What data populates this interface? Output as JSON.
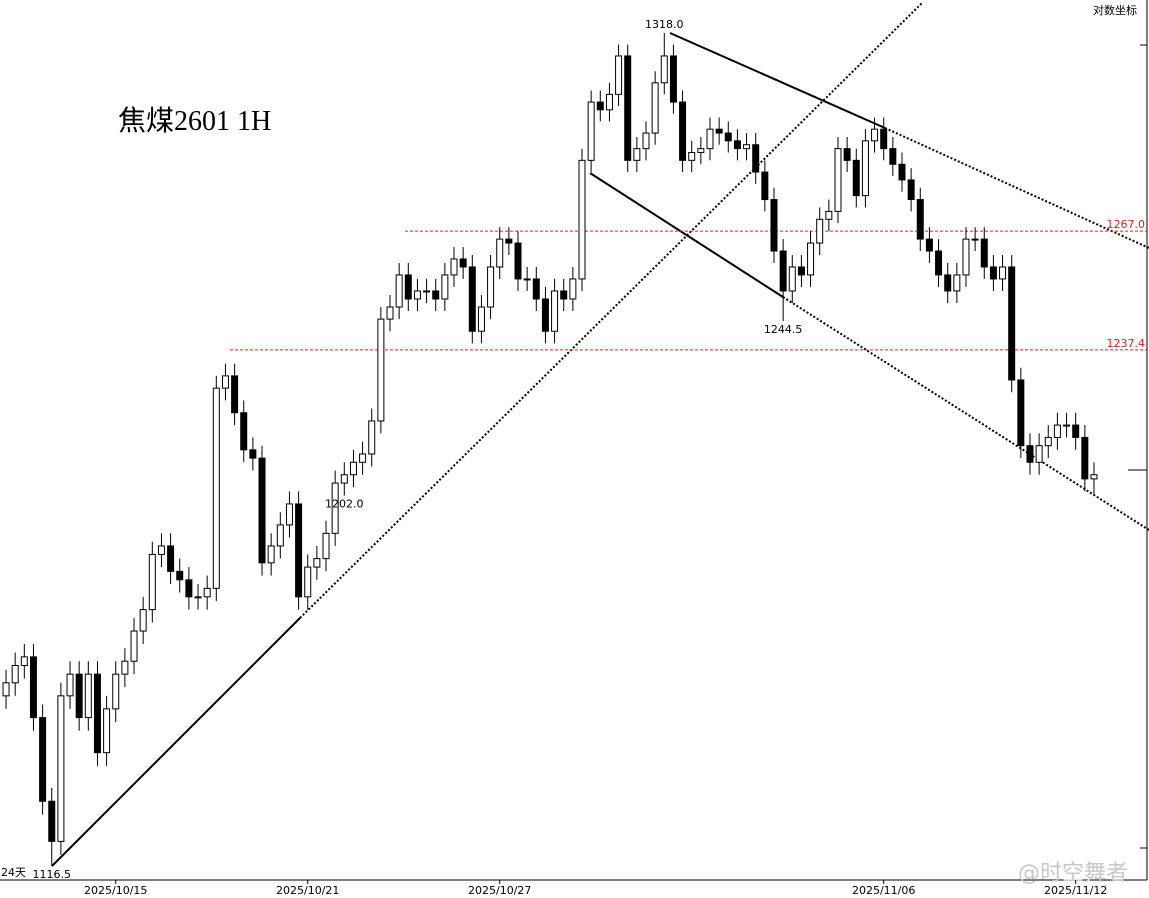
{
  "chart_data": {
    "type": "candlestick",
    "title": "焦煤2601  1H",
    "scale_note": "对数坐标",
    "corner_note": "24天",
    "watermark": "@时空舞者",
    "log_scale": true,
    "ylim": [
      1113.4,
      1326.7
    ],
    "xlim": [
      -0.66,
      124.8
    ],
    "up_color": "#ffffff",
    "down_color": "#000000",
    "level_color": "#e02020",
    "xticks": [
      {
        "value": 12,
        "label": "2025/10/15"
      },
      {
        "value": 33,
        "label": "2025/10/21"
      },
      {
        "value": 54,
        "label": "2025/10/27"
      },
      {
        "value": 96,
        "label": "2025/11/06"
      },
      {
        "value": 117,
        "label": "2025/11/12"
      }
    ],
    "levels": [
      {
        "value": 1267,
        "label": "1267.0"
      },
      {
        "value": 1237.4,
        "label": "1237.4"
      }
    ],
    "annotations": [
      {
        "value": 1318,
        "label": "1318.0"
      },
      {
        "value": 1116.5,
        "label": "1116.5"
      },
      {
        "value": 1244.5,
        "label": "1244.5"
      },
      {
        "value": 1202,
        "label": "1202.0"
      }
    ],
    "open": [
      1155,
      1158,
      1162,
      1164,
      1150,
      1131,
      1122,
      1155,
      1160,
      1150,
      1160,
      1142,
      1152,
      1160,
      1163,
      1170,
      1175,
      1188,
      1190,
      1184,
      1182,
      1178,
      1178,
      1180,
      1228,
      1231,
      1222,
      1213,
      1211,
      1186,
      1190,
      1195,
      1200,
      1178,
      1185,
      1187,
      1193,
      1205,
      1207,
      1210,
      1212,
      1220,
      1245,
      1248,
      1256,
      1250,
      1252,
      1252,
      1250,
      1256,
      1260,
      1258,
      1242,
      1248,
      1258,
      1265,
      1264,
      1255,
      1255,
      1250,
      1242,
      1252,
      1250,
      1255,
      1285,
      1300,
      1298,
      1302,
      1312,
      1285,
      1288,
      1292,
      1305,
      1312,
      1300,
      1285,
      1287,
      1288,
      1293,
      1292,
      1290,
      1288,
      1289,
      1282,
      1275,
      1262,
      1252,
      1258,
      1256,
      1264,
      1270,
      1272,
      1288,
      1285,
      1276,
      1290,
      1293,
      1288,
      1284,
      1280,
      1275,
      1265,
      1262,
      1256,
      1252,
      1256,
      1265,
      1265,
      1258,
      1255,
      1258,
      1230,
      1214,
      1210,
      1214,
      1216,
      1219,
      1219,
      1216,
      1206
    ],
    "high": [
      1161,
      1165,
      1167,
      1167,
      1153,
      1134,
      1158,
      1163,
      1163,
      1163,
      1163,
      1155,
      1163,
      1166,
      1173,
      1178,
      1191,
      1193,
      1193,
      1187,
      1185,
      1181,
      1183,
      1231,
      1234,
      1234,
      1225,
      1216,
      1214,
      1193,
      1198,
      1203,
      1203,
      1188,
      1190,
      1196,
      1208,
      1210,
      1213,
      1215,
      1223,
      1248,
      1251,
      1259,
      1259,
      1255,
      1255,
      1255,
      1259,
      1263,
      1263,
      1261,
      1251,
      1261,
      1268,
      1268,
      1267,
      1258,
      1258,
      1253,
      1255,
      1255,
      1258,
      1288,
      1303,
      1303,
      1305,
      1315,
      1315,
      1291,
      1295,
      1308,
      1318,
      1315,
      1303,
      1290,
      1291,
      1296,
      1296,
      1295,
      1293,
      1292,
      1292,
      1285,
      1278,
      1265,
      1261,
      1261,
      1267,
      1273,
      1275,
      1291,
      1291,
      1288,
      1293,
      1296,
      1296,
      1291,
      1287,
      1283,
      1278,
      1268,
      1265,
      1259,
      1259,
      1268,
      1268,
      1268,
      1261,
      1261,
      1261,
      1233,
      1217,
      1217,
      1219,
      1222,
      1222,
      1222,
      1219,
      1210
    ],
    "low": [
      1152,
      1155,
      1159,
      1147,
      1128,
      1116.5,
      1119,
      1152,
      1147,
      1147,
      1139,
      1139,
      1149,
      1157,
      1160,
      1167,
      1172,
      1185,
      1181,
      1179,
      1175,
      1175,
      1175,
      1177,
      1225,
      1219,
      1210,
      1208,
      1183,
      1183,
      1187,
      1192,
      1175,
      1175,
      1182,
      1184,
      1190,
      1202,
      1204,
      1207,
      1209,
      1217,
      1242,
      1245,
      1247,
      1247,
      1249,
      1247,
      1247,
      1253,
      1255,
      1239,
      1239,
      1245,
      1255,
      1261,
      1252,
      1252,
      1247,
      1239,
      1239,
      1247,
      1247,
      1252,
      1282,
      1295,
      1295,
      1299,
      1282,
      1282,
      1285,
      1289,
      1302,
      1297,
      1282,
      1282,
      1284,
      1285,
      1289,
      1287,
      1285,
      1285,
      1279,
      1272,
      1259,
      1244.5,
      1249,
      1253,
      1253,
      1261,
      1267,
      1269,
      1282,
      1273,
      1273,
      1287,
      1285,
      1281,
      1277,
      1272,
      1262,
      1259,
      1253,
      1249,
      1249,
      1253,
      1262,
      1255,
      1252,
      1252,
      1227,
      1211,
      1207,
      1207,
      1211,
      1213,
      1216,
      1213,
      1203,
      1202
    ],
    "close": [
      1158,
      1162,
      1164,
      1150,
      1131,
      1122,
      1155,
      1160,
      1150,
      1160,
      1142,
      1152,
      1160,
      1163,
      1170,
      1175,
      1188,
      1190,
      1184,
      1182,
      1178,
      1178,
      1180,
      1228,
      1231,
      1222,
      1213,
      1211,
      1186,
      1190,
      1195,
      1200,
      1178,
      1185,
      1187,
      1193,
      1205,
      1207,
      1210,
      1212,
      1220,
      1245,
      1248,
      1256,
      1250,
      1252,
      1252,
      1250,
      1256,
      1260,
      1258,
      1242,
      1248,
      1258,
      1265,
      1264,
      1255,
      1255,
      1250,
      1242,
      1252,
      1250,
      1255,
      1285,
      1300,
      1298,
      1302,
      1312,
      1285,
      1288,
      1292,
      1305,
      1312,
      1300,
      1285,
      1287,
      1288,
      1293,
      1292,
      1290,
      1288,
      1289,
      1282,
      1275,
      1262,
      1252,
      1258,
      1256,
      1264,
      1270,
      1272,
      1288,
      1285,
      1276,
      1290,
      1293,
      1288,
      1284,
      1280,
      1275,
      1265,
      1262,
      1256,
      1252,
      1256,
      1265,
      1265,
      1258,
      1255,
      1258,
      1230,
      1214,
      1210,
      1214,
      1216,
      1219,
      1219,
      1216,
      1206,
      1207
    ]
  }
}
